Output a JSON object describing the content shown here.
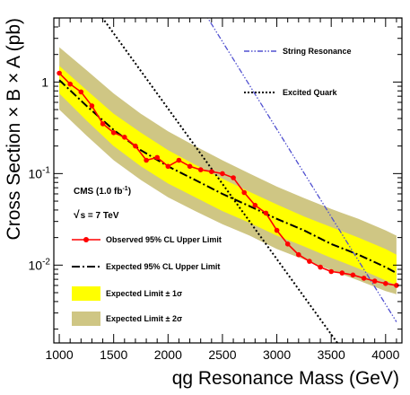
{
  "chart_data": {
    "type": "line",
    "xlabel": "qg Resonance Mass (GeV)",
    "ylabel": "Cross Section × B × A (pb)",
    "xlim": [
      950,
      4150
    ],
    "ylim_log10": [
      -2.85,
      0.7
    ],
    "log_y": true,
    "x_ticks": [
      1000,
      1500,
      2000,
      2500,
      3000,
      3500,
      4000
    ],
    "y_ticks": [
      {
        "value": 1,
        "label": "1"
      },
      {
        "value": 0.1,
        "label": "10-1",
        "base": "10",
        "exp": "-1"
      },
      {
        "value": 0.01,
        "label": "10-2",
        "base": "10",
        "exp": "-2"
      }
    ],
    "legend_placement": "inside-left / top-right",
    "annotations": {
      "experiment": "CMS (1.0 fb-1)",
      "energy": "√s = 7 TeV"
    },
    "colors": {
      "observed": "#ff0000",
      "band1": "#ffff00",
      "band2": "#cfc684",
      "string": "#5050d0"
    },
    "series": [
      {
        "name": "Observed 95% CL Upper Limit",
        "style": "red-line-with-markers",
        "x": [
          1000,
          1100,
          1200,
          1300,
          1400,
          1500,
          1600,
          1700,
          1800,
          1900,
          2000,
          2100,
          2200,
          2300,
          2400,
          2500,
          2600,
          2700,
          2800,
          2900,
          3000,
          3100,
          3200,
          3300,
          3400,
          3500,
          3600,
          3700,
          3800,
          3900,
          4000,
          4100
        ],
        "y": [
          1.25,
          0.95,
          0.78,
          0.55,
          0.35,
          0.28,
          0.25,
          0.2,
          0.14,
          0.15,
          0.12,
          0.14,
          0.12,
          0.11,
          0.105,
          0.1,
          0.09,
          0.062,
          0.045,
          0.037,
          0.024,
          0.017,
          0.013,
          0.011,
          0.0095,
          0.0085,
          0.0082,
          0.0078,
          0.0072,
          0.0067,
          0.0063,
          0.006
        ]
      },
      {
        "name": "Expected 95% CL Upper Limit",
        "style": "dash-dot",
        "x": [
          1000,
          1250,
          1500,
          1750,
          2000,
          2250,
          2500,
          2750,
          3000,
          3250,
          3500,
          3750,
          4000,
          4100
        ],
        "y": [
          1.05,
          0.55,
          0.3,
          0.18,
          0.12,
          0.085,
          0.06,
          0.044,
          0.032,
          0.024,
          0.017,
          0.013,
          0.0095,
          0.0082
        ]
      },
      {
        "name": "Expected Limit ± 1σ",
        "style": "band",
        "x": [
          1000,
          1250,
          1500,
          1750,
          2000,
          2250,
          2500,
          2750,
          3000,
          3250,
          3500,
          3750,
          4000,
          4100
        ],
        "low": [
          0.75,
          0.38,
          0.2,
          0.12,
          0.078,
          0.055,
          0.039,
          0.029,
          0.021,
          0.016,
          0.012,
          0.0092,
          0.0068,
          0.006
        ],
        "high": [
          1.5,
          0.82,
          0.45,
          0.28,
          0.18,
          0.125,
          0.088,
          0.063,
          0.046,
          0.034,
          0.026,
          0.02,
          0.015,
          0.013
        ]
      },
      {
        "name": "Expected Limit ± 2σ",
        "style": "band",
        "x": [
          1000,
          1250,
          1500,
          1750,
          2000,
          2250,
          2500,
          2750,
          3000,
          3250,
          3500,
          3750,
          4000,
          4100
        ],
        "low": [
          0.5,
          0.26,
          0.14,
          0.085,
          0.055,
          0.039,
          0.028,
          0.021,
          0.015,
          0.0115,
          0.0088,
          0.0068,
          0.0052,
          0.0048
        ],
        "high": [
          2.4,
          1.35,
          0.75,
          0.45,
          0.29,
          0.2,
          0.14,
          0.1,
          0.072,
          0.054,
          0.041,
          0.032,
          0.024,
          0.021
        ]
      },
      {
        "name": "String Resonance",
        "style": "blue-dash-dot-dot",
        "x": [
          2000,
          4100
        ],
        "y": [
          25,
          0.0024
        ]
      },
      {
        "name": "Excited Quark",
        "style": "black-dotted",
        "x": [
          1350,
          3600
        ],
        "y": [
          6.0,
          0.0012
        ]
      }
    ]
  }
}
